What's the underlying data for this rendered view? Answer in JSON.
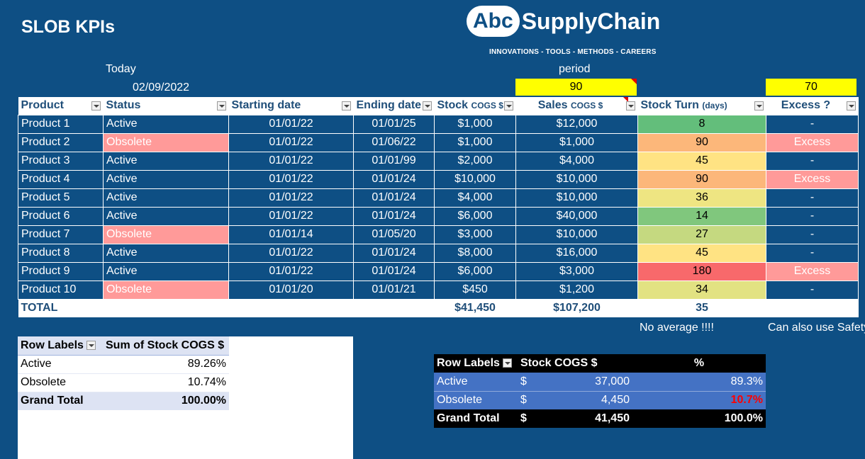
{
  "title": "SLOB KPIs",
  "logo": {
    "badge": "Abc",
    "text": "SupplyChain",
    "tagline": "INNOVATIONS - TOOLS - METHODS - CAREERS"
  },
  "today": {
    "label": "Today",
    "value": "02/09/2022"
  },
  "period": {
    "label": "period",
    "value": "90"
  },
  "excess_threshold": "70",
  "main_table": {
    "headers": {
      "product": "Product",
      "status": "Status",
      "start": "Starting date",
      "end": "Ending date",
      "stock": "Stock",
      "stock_unit": "COGS $",
      "sales": "Sales",
      "sales_unit": "COGS $",
      "turn": "Stock Turn",
      "turn_unit": "(days)",
      "excess": "Excess ?"
    },
    "rows": [
      {
        "product": "Product 1",
        "status": "Active",
        "start": "01/01/22",
        "end": "01/01/25",
        "stock": "$1,000",
        "sales": "$12,000",
        "turn": "8",
        "turn_color": "#63be7b",
        "excess": "-"
      },
      {
        "product": "Product 2",
        "status": "Obsolete",
        "start": "01/01/22",
        "end": "01/06/22",
        "stock": "$1,000",
        "sales": "$1,000",
        "turn": "90",
        "turn_color": "#fcb77a",
        "excess": "Excess"
      },
      {
        "product": "Product 3",
        "status": "Active",
        "start": "01/01/22",
        "end": "01/01/99",
        "stock": "$2,000",
        "sales": "$4,000",
        "turn": "45",
        "turn_color": "#ffe383",
        "excess": "-"
      },
      {
        "product": "Product 4",
        "status": "Active",
        "start": "01/01/22",
        "end": "01/01/24",
        "stock": "$10,000",
        "sales": "$10,000",
        "turn": "90",
        "turn_color": "#fcb77a",
        "excess": "Excess"
      },
      {
        "product": "Product 5",
        "status": "Active",
        "start": "01/01/22",
        "end": "01/01/24",
        "stock": "$4,000",
        "sales": "$10,000",
        "turn": "36",
        "turn_color": "#eee582",
        "excess": "-"
      },
      {
        "product": "Product 6",
        "status": "Active",
        "start": "01/01/22",
        "end": "01/01/24",
        "stock": "$6,000",
        "sales": "$40,000",
        "turn": "14",
        "turn_color": "#80c77d",
        "excess": "-"
      },
      {
        "product": "Product 7",
        "status": "Obsolete",
        "start": "01/01/14",
        "end": "01/05/20",
        "stock": "$3,000",
        "sales": "$10,000",
        "turn": "27",
        "turn_color": "#c5d980",
        "excess": "-"
      },
      {
        "product": "Product 8",
        "status": "Active",
        "start": "01/01/22",
        "end": "01/01/24",
        "stock": "$8,000",
        "sales": "$16,000",
        "turn": "45",
        "turn_color": "#ffe383",
        "excess": "-"
      },
      {
        "product": "Product 9",
        "status": "Active",
        "start": "01/01/22",
        "end": "01/01/24",
        "stock": "$6,000",
        "sales": "$3,000",
        "turn": "180",
        "turn_color": "#f8696b",
        "excess": "Excess"
      },
      {
        "product": "Product 10",
        "status": "Obsolete",
        "start": "01/01/20",
        "end": "01/01/21",
        "stock": "$450",
        "sales": "$1,200",
        "turn": "34",
        "turn_color": "#e2e282",
        "excess": "-"
      }
    ],
    "total": {
      "label": "TOTAL",
      "stock": "$41,450",
      "sales": "$107,200",
      "turn": "35"
    }
  },
  "notes": {
    "no_average": "No average !!!!",
    "safety": "Can also use Safety"
  },
  "pivot1": {
    "headers": {
      "labels": "Row Labels",
      "sum": "Sum of Stock COGS $"
    },
    "rows": [
      {
        "label": "Active",
        "value": "89.26%"
      },
      {
        "label": "Obsolete",
        "value": "10.74%"
      }
    ],
    "total": {
      "label": "Grand Total",
      "value": "100.00%"
    }
  },
  "pivot2": {
    "headers": {
      "labels": "Row Labels",
      "stock": "Stock COGS $",
      "pct": "%"
    },
    "rows": [
      {
        "label": "Active",
        "cur": "$",
        "stock": "37,000",
        "pct": "89.3%",
        "highlight": false
      },
      {
        "label": "Obsolete",
        "cur": "$",
        "stock": "4,450",
        "pct": "10.7%",
        "highlight": true
      }
    ],
    "total": {
      "label": "Grand Total",
      "cur": "$",
      "stock": "41,450",
      "pct": "100.0%"
    }
  }
}
